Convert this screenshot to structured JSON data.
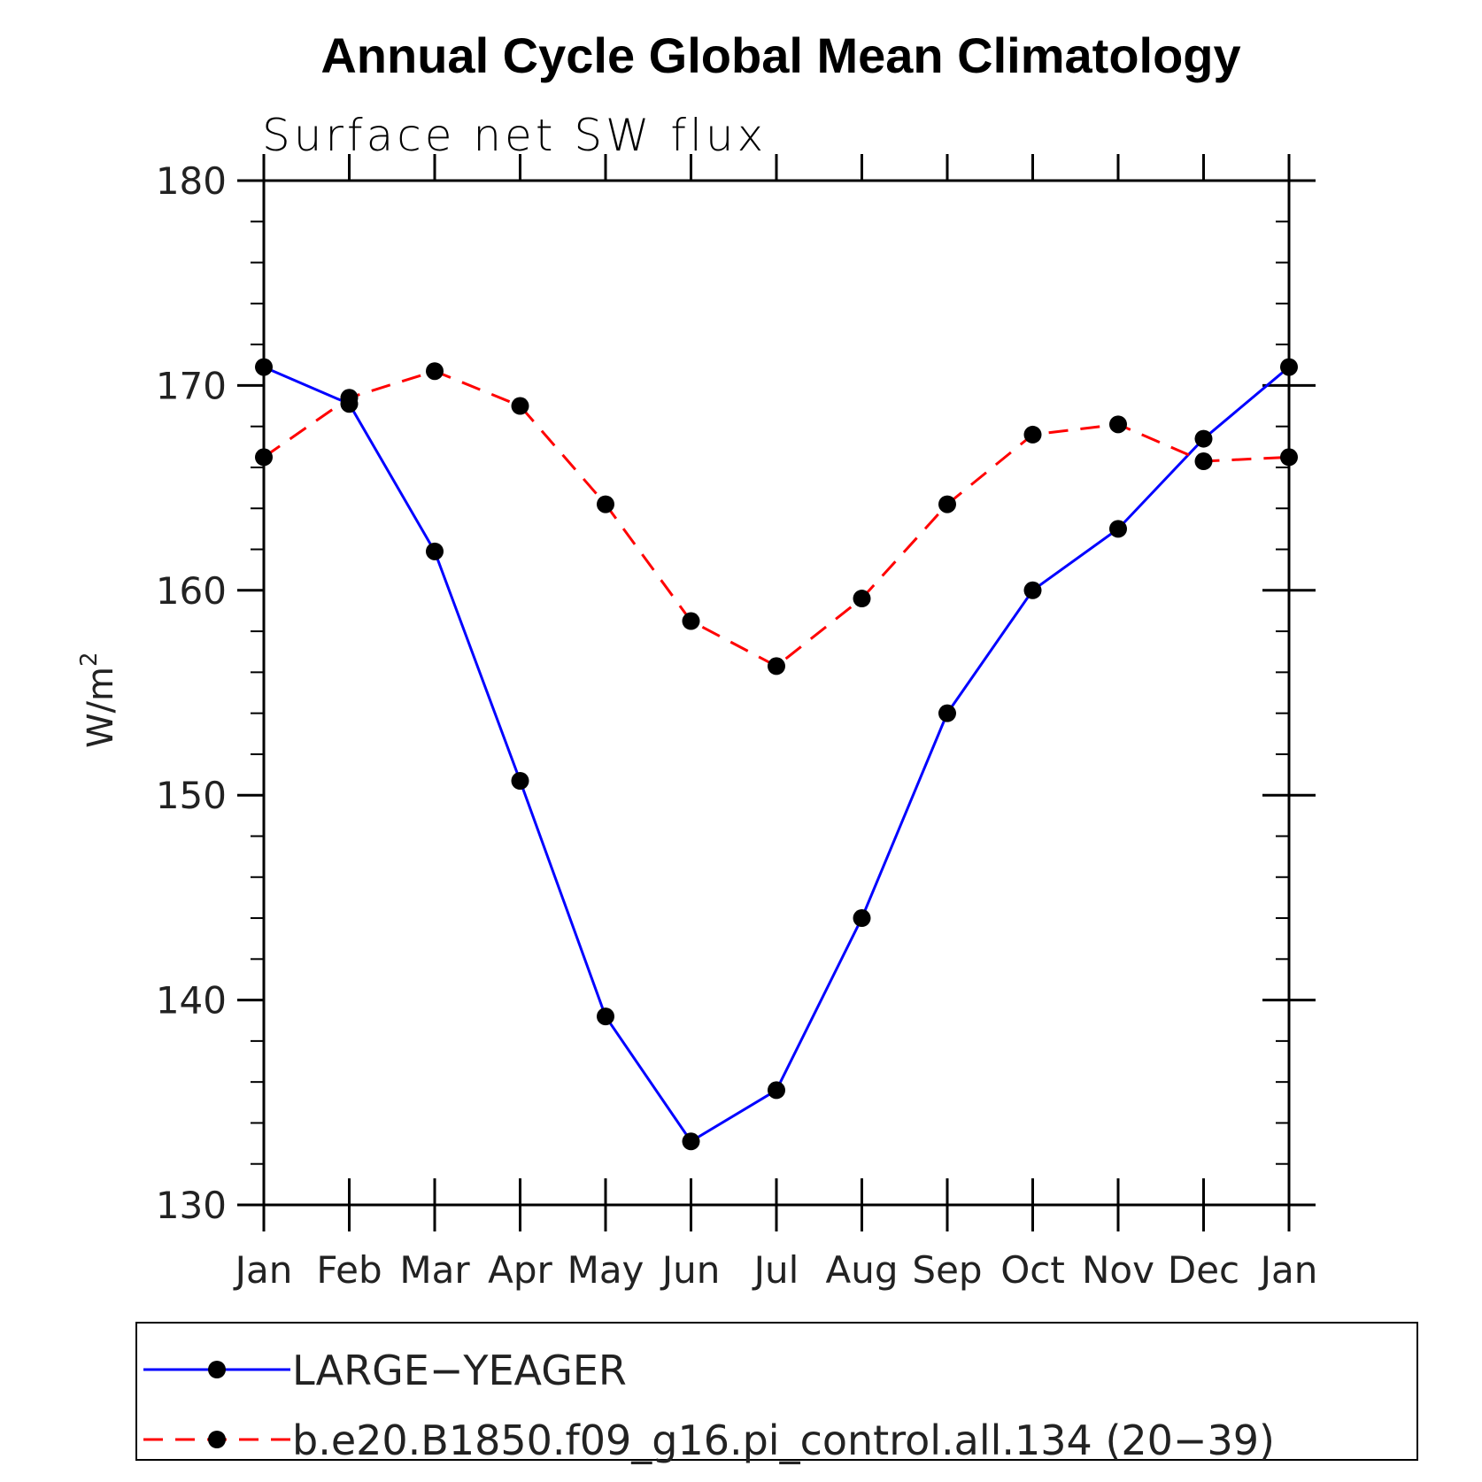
{
  "chart_data": {
    "type": "line",
    "title": "Annual Cycle Global Mean Climatology",
    "subtitle": "Surface net SW flux",
    "xlabel": "",
    "ylabel": "W/m²",
    "ylabel_base": "W/m",
    "ylabel_sup": "2",
    "categories": [
      "Jan",
      "Feb",
      "Mar",
      "Apr",
      "May",
      "Jun",
      "Jul",
      "Aug",
      "Sep",
      "Oct",
      "Nov",
      "Dec",
      "Jan"
    ],
    "ylim": [
      130,
      180
    ],
    "yticks": [
      130,
      140,
      150,
      160,
      170,
      180
    ],
    "yticks_labels": [
      "130",
      "140",
      "150",
      "160",
      "170",
      "180"
    ],
    "grid": false,
    "legend_position": "bottom",
    "series": [
      {
        "name": "LARGE−YEAGER",
        "color": "#0000ff",
        "dash": "solid",
        "marker": "filled-circle",
        "values": [
          170.9,
          169.1,
          161.9,
          150.7,
          139.2,
          133.1,
          135.6,
          144.0,
          154.0,
          160.0,
          163.0,
          167.4,
          170.9
        ]
      },
      {
        "name": "b.e20.B1850.f09_g16.pi_control.all.134 (20−39)",
        "color": "#ff0000",
        "dash": "dashed",
        "marker": "filled-circle",
        "values": [
          166.5,
          169.4,
          170.7,
          169.0,
          164.2,
          158.5,
          156.3,
          159.6,
          164.2,
          167.6,
          168.1,
          166.3,
          166.5
        ]
      }
    ]
  }
}
